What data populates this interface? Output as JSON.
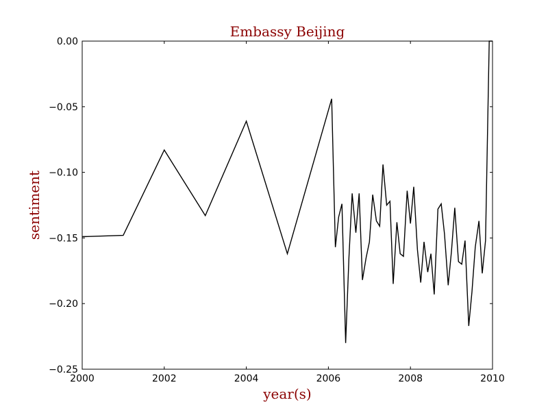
{
  "chart_data": {
    "type": "line",
    "title": "Embassy Beijing",
    "xlabel": "year(s)",
    "ylabel": "sentiment",
    "xlim": [
      2000,
      2010
    ],
    "ylim": [
      -0.25,
      0.0
    ],
    "x_ticks": [
      2000,
      2002,
      2004,
      2006,
      2008,
      2010
    ],
    "y_ticks": [
      0.0,
      -0.05,
      -0.1,
      -0.15,
      -0.2,
      -0.25
    ],
    "x_tick_labels": [
      "2000",
      "2002",
      "2004",
      "2006",
      "2008",
      "2010"
    ],
    "y_tick_labels": [
      "0.00",
      "−0.05",
      "−0.10",
      "−0.15",
      "−0.20",
      "−0.25"
    ],
    "grid": false,
    "colors": {
      "line": "#000000",
      "title": "#8b0000",
      "axis_label": "#8b0000"
    },
    "series": [
      {
        "x": [
          2000.0,
          2001.0,
          2002.0,
          2003.0,
          2004.0,
          2005.0,
          2006.08,
          2006.17,
          2006.25,
          2006.33,
          2006.42,
          2006.5,
          2006.58,
          2006.67,
          2006.75,
          2006.83,
          2006.92,
          2007.0,
          2007.08,
          2007.17,
          2007.25,
          2007.33,
          2007.42,
          2007.5,
          2007.58,
          2007.67,
          2007.75,
          2007.83,
          2007.92,
          2008.0,
          2008.08,
          2008.17,
          2008.25,
          2008.33,
          2008.42,
          2008.5,
          2008.58,
          2008.67,
          2008.75,
          2008.83,
          2008.92,
          2009.0,
          2009.08,
          2009.17,
          2009.25,
          2009.33,
          2009.42,
          2009.5,
          2009.58,
          2009.67,
          2009.75,
          2009.83,
          2009.92,
          2010.0
        ],
        "y": [
          -0.149,
          -0.148,
          -0.083,
          -0.133,
          -0.061,
          -0.162,
          -0.044,
          -0.157,
          -0.134,
          -0.124,
          -0.23,
          -0.165,
          -0.116,
          -0.146,
          -0.116,
          -0.182,
          -0.165,
          -0.153,
          -0.117,
          -0.137,
          -0.141,
          -0.094,
          -0.125,
          -0.122,
          -0.185,
          -0.138,
          -0.162,
          -0.164,
          -0.114,
          -0.139,
          -0.111,
          -0.159,
          -0.184,
          -0.153,
          -0.176,
          -0.162,
          -0.193,
          -0.128,
          -0.124,
          -0.147,
          -0.186,
          -0.16,
          -0.127,
          -0.168,
          -0.17,
          -0.152,
          -0.217,
          -0.191,
          -0.157,
          -0.137,
          -0.177,
          -0.152,
          0.0,
          0.0
        ]
      }
    ]
  }
}
